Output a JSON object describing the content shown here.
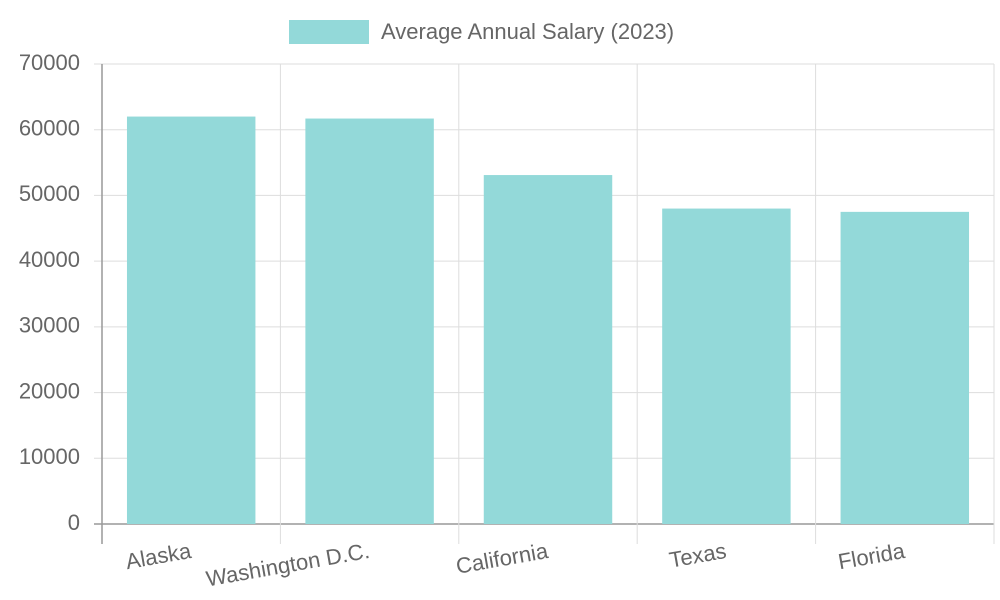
{
  "chart_data": {
    "type": "bar",
    "categories": [
      "Alaska",
      "Washington D.C.",
      "California",
      "Texas",
      "Florida"
    ],
    "series": [
      {
        "name": "Average Annual Salary (2023)",
        "color": "#93d9d9",
        "values": [
          62000,
          61700,
          53100,
          48000,
          47500
        ]
      }
    ],
    "ylim": [
      0,
      70000
    ],
    "yticks": [
      0,
      10000,
      20000,
      30000,
      40000,
      50000,
      60000,
      70000
    ],
    "grid": true,
    "legend": "top"
  }
}
